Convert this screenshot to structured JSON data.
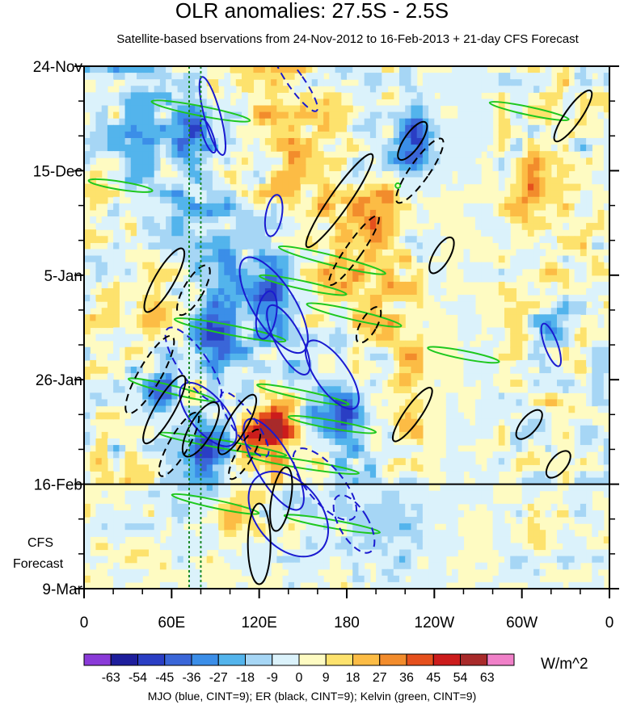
{
  "chart_data": {
    "type": "heatmap",
    "title": "OLR anomalies: 27.5S - 2.5S",
    "subtitle": "Satellite-based bservations from 24-Nov-2012 to 16-Feb-2013 + 21-day CFS Forecast",
    "x_ticks": [
      "0",
      "60E",
      "120E",
      "180",
      "120W",
      "60W",
      "0"
    ],
    "x_tick_degrees": [
      0,
      60,
      120,
      180,
      240,
      300,
      360
    ],
    "y_ticks": [
      "24-Nov",
      "15-Dec",
      "5-Jan",
      "26-Jan",
      "16-Feb",
      "9-Mar"
    ],
    "y_tick_days": [
      0,
      21,
      42,
      63,
      84,
      105
    ],
    "observation_end_label": "16-Feb",
    "forecast_label_line1": "CFS",
    "forecast_label_line2": "Forecast",
    "colorbar": {
      "levels": [
        "-63",
        "-54",
        "-45",
        "-36",
        "-27",
        "-18",
        "-9",
        "0",
        "9",
        "18",
        "27",
        "36",
        "45",
        "54",
        "63"
      ],
      "colors": [
        "#8a3ad8",
        "#1e1e9c",
        "#2a3ec4",
        "#3a66d8",
        "#3b8ee8",
        "#53b4ec",
        "#a6d6f5",
        "#dbf2fb",
        "#fefbc2",
        "#fde26d",
        "#fcbc45",
        "#f28c2c",
        "#e5501d",
        "#cc1c1c",
        "#a82a2a",
        "#f080c8"
      ],
      "units": "W/m^2"
    },
    "contour_legend": "MJO (blue, CINT=9); ER (black, CINT=9); Kelvin (green, CINT=9)",
    "contour_colors": {
      "mjo": "#1a1ad0",
      "er": "#000000",
      "kelvin": "#1ec81e"
    },
    "anomaly_features": [
      {
        "lon": 45,
        "day": 48,
        "value": 36
      },
      {
        "lon": 135,
        "day": 72,
        "value": 63
      },
      {
        "lon": 120,
        "day": 75,
        "value": 45
      },
      {
        "lon": 160,
        "day": 78,
        "value": 36
      },
      {
        "lon": 305,
        "day": 25,
        "value": 45
      },
      {
        "lon": 200,
        "day": 28,
        "value": 27
      },
      {
        "lon": 105,
        "day": 90,
        "value": 27
      },
      {
        "lon": 315,
        "day": 45,
        "value": 27
      },
      {
        "lon": 90,
        "day": 55,
        "value": -54
      },
      {
        "lon": 55,
        "day": 65,
        "value": -45
      },
      {
        "lon": 85,
        "day": 78,
        "value": -63
      },
      {
        "lon": 130,
        "day": 45,
        "value": -45
      },
      {
        "lon": 180,
        "day": 70,
        "value": -45
      },
      {
        "lon": 225,
        "day": 15,
        "value": -54
      },
      {
        "lon": 75,
        "day": 12,
        "value": -45
      },
      {
        "lon": 320,
        "day": 50,
        "value": -36
      }
    ]
  }
}
